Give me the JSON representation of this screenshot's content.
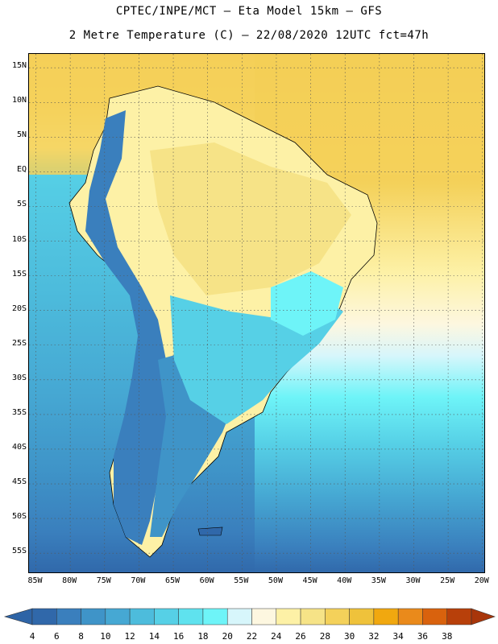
{
  "header": {
    "line1": "CPTEC/INPE/MCT –  Eta Model 15km – GFS",
    "line2": "2 Metre Temperature (C) – 22/08/2020 12UTC fct=47h"
  },
  "map": {
    "lat_labels": [
      "15N",
      "10N",
      "5N",
      "EQ",
      "5S",
      "10S",
      "15S",
      "20S",
      "25S",
      "30S",
      "35S",
      "40S",
      "45S",
      "50S",
      "55S"
    ],
    "lon_labels": [
      "85W",
      "80W",
      "75W",
      "70W",
      "65W",
      "60W",
      "55W",
      "50W",
      "45W",
      "40W",
      "35W",
      "30W",
      "25W",
      "20W"
    ],
    "lat_values": [
      15,
      10,
      5,
      0,
      -5,
      -10,
      -15,
      -20,
      -25,
      -30,
      -35,
      -40,
      -45,
      -50,
      -55
    ],
    "lon_values": [
      -85,
      -80,
      -75,
      -70,
      -65,
      -60,
      -55,
      -50,
      -45,
      -40,
      -35,
      -30,
      -25,
      -20
    ],
    "extent": {
      "lon_min": -86,
      "lon_max": -19.5,
      "lat_min": -58,
      "lat_max": 17
    },
    "gridlines": "dotted"
  },
  "colorbar": {
    "labels": [
      "4",
      "6",
      "8",
      "10",
      "12",
      "14",
      "16",
      "18",
      "20",
      "22",
      "24",
      "26",
      "28",
      "30",
      "32",
      "34",
      "36",
      "38"
    ],
    "colors": [
      "#3068aa",
      "#3a7fbd",
      "#3f94c8",
      "#46a8d3",
      "#4dbcdc",
      "#56d0e6",
      "#5fe2ee",
      "#6ef4f8",
      "#d7f6fb",
      "#fdf7e0",
      "#fdf1a6",
      "#f6e387",
      "#f4d15a",
      "#efc23b",
      "#f1a80f",
      "#ea8a1b",
      "#d9620d",
      "#b8400a"
    ],
    "under_color": "#2e64a6",
    "over_color": "#a8360a"
  }
}
